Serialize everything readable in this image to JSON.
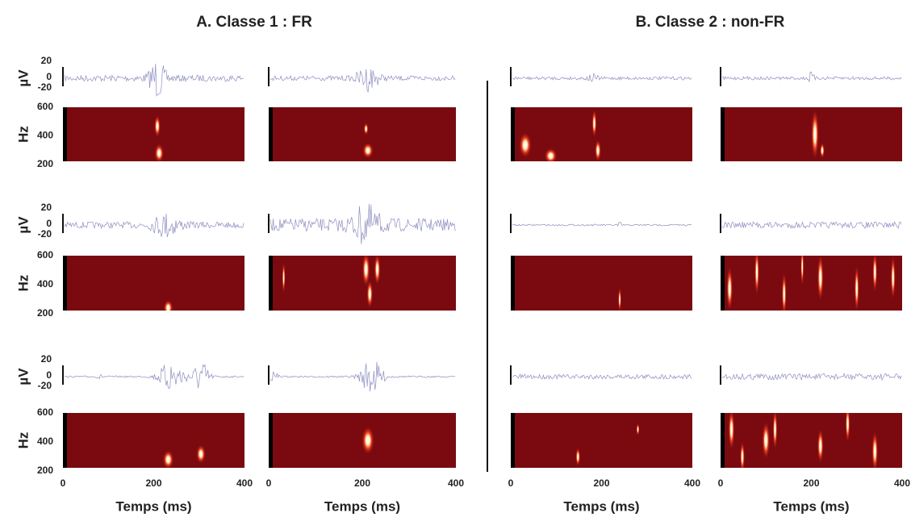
{
  "panels": [
    {
      "title": "A. Classe 1 : FR"
    },
    {
      "title": "B. Classe 2 : non-FR"
    }
  ],
  "signal_axis": {
    "label": "µV",
    "ticks": [
      20,
      0,
      -20
    ]
  },
  "spectrogram_axis": {
    "label": "Hz",
    "ticks": [
      600,
      400,
      200
    ]
  },
  "time_axis": {
    "label": "Temps (ms)",
    "ticks": [
      0,
      200,
      400
    ]
  }
}
